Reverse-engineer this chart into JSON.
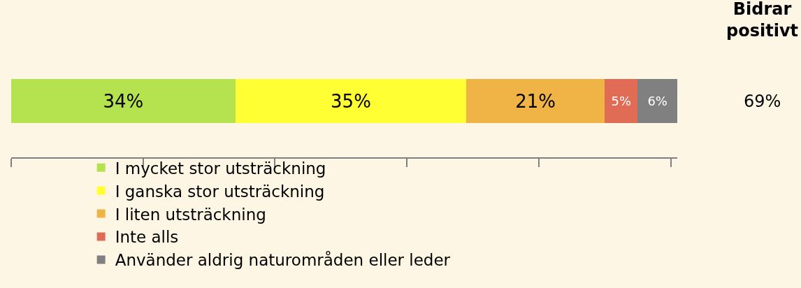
{
  "chart_data": {
    "type": "bar",
    "orientation": "horizontal",
    "stacked": true,
    "categories": [
      null
    ],
    "series": [
      {
        "name": "I mycket stor utsträckning",
        "color": "#b5e34f",
        "values": [
          34
        ],
        "value_labels": [
          "34%"
        ]
      },
      {
        "name": "I ganska stor utsträckning",
        "color": "#ffff33",
        "values": [
          35
        ],
        "value_labels": [
          "35%"
        ]
      },
      {
        "name": "I liten utsträckning",
        "color": "#f0b446",
        "values": [
          21
        ],
        "value_labels": [
          "21%"
        ]
      },
      {
        "name": "Inte alls",
        "color": "#e06c55",
        "values": [
          5
        ],
        "value_labels": [
          "5%"
        ]
      },
      {
        "name": "Använder aldrig naturområden eller leder",
        "color": "#808080",
        "values": [
          6
        ],
        "value_labels": [
          "6%"
        ]
      }
    ],
    "tick_labels": false,
    "grid": false,
    "legend": "bottom",
    "annotations": [
      "Bidrar\npositivt",
      "69%"
    ]
  }
}
